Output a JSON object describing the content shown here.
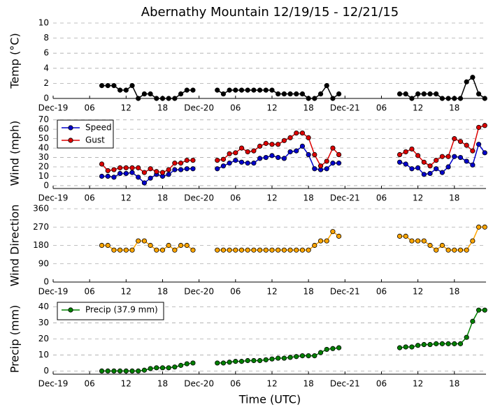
{
  "chart_data": [
    {
      "type": "line",
      "title": "Abernathy Mountain 12/19/15 - 12/21/15",
      "ylabel": "Temp (°C)",
      "x": [
        8,
        9,
        10,
        11,
        12,
        13,
        14,
        15,
        16,
        17,
        18,
        19,
        20,
        21,
        22,
        23,
        24,
        27,
        28,
        29,
        30,
        31,
        32,
        33,
        34,
        35,
        36,
        37,
        38,
        39,
        40,
        41,
        42,
        43,
        44,
        45,
        46,
        47,
        48,
        57,
        58,
        59,
        60,
        61,
        62,
        63,
        64,
        65,
        66,
        67,
        68,
        69,
        70,
        71
      ],
      "xlim": [
        0,
        71.2
      ],
      "xticks": [
        {
          "value": 0,
          "label": "Dec-19"
        },
        {
          "value": 6,
          "label": "06"
        },
        {
          "value": 12,
          "label": "12"
        },
        {
          "value": 18,
          "label": "18"
        },
        {
          "value": 24,
          "label": "Dec-20"
        },
        {
          "value": 30,
          "label": "06"
        },
        {
          "value": 36,
          "label": "12"
        },
        {
          "value": 42,
          "label": "18"
        },
        {
          "value": 48,
          "label": "Dec-21"
        },
        {
          "value": 54,
          "label": "06"
        },
        {
          "value": 60,
          "label": "12"
        },
        {
          "value": 66,
          "label": "18"
        }
      ],
      "ylim": [
        0,
        10
      ],
      "yticks": [
        0,
        2,
        4,
        6,
        8,
        10
      ],
      "grid": true,
      "series": [
        {
          "name": "Temp",
          "color": "#000000",
          "values": [
            1.7,
            1.7,
            1.7,
            1.1,
            1.1,
            1.7,
            0,
            0.6,
            0.6,
            0,
            0,
            0,
            0,
            0.6,
            1.1,
            1.1,
            null,
            1.1,
            0.6,
            1.1,
            1.1,
            1.1,
            1.1,
            1.1,
            1.1,
            1.1,
            1.1,
            0.6,
            0.6,
            0.6,
            0.6,
            0.6,
            0,
            0,
            0.6,
            1.7,
            0,
            0.6,
            null,
            0.6,
            0.6,
            0,
            0.6,
            0.6,
            0.6,
            0.6,
            0,
            0,
            0,
            0,
            2.2,
            2.8,
            0.6,
            0
          ]
        }
      ]
    },
    {
      "type": "line",
      "ylabel": "Wind (mph)",
      "legend": "upper left",
      "x": [
        8,
        9,
        10,
        11,
        12,
        13,
        14,
        15,
        16,
        17,
        18,
        19,
        20,
        21,
        22,
        23,
        24,
        27,
        28,
        29,
        30,
        31,
        32,
        33,
        34,
        35,
        36,
        37,
        38,
        39,
        40,
        41,
        42,
        43,
        44,
        45,
        46,
        47,
        48,
        57,
        58,
        59,
        60,
        61,
        62,
        63,
        64,
        65,
        66,
        67,
        68,
        69,
        70,
        71
      ],
      "xlim": [
        0,
        71.2
      ],
      "xticks": [
        {
          "value": 0,
          "label": "Dec-19"
        },
        {
          "value": 6,
          "label": "06"
        },
        {
          "value": 12,
          "label": "12"
        },
        {
          "value": 18,
          "label": "18"
        },
        {
          "value": 24,
          "label": "Dec-20"
        },
        {
          "value": 30,
          "label": "06"
        },
        {
          "value": 36,
          "label": "12"
        },
        {
          "value": 42,
          "label": "18"
        },
        {
          "value": 48,
          "label": "Dec-21"
        },
        {
          "value": 54,
          "label": "06"
        },
        {
          "value": 60,
          "label": "12"
        },
        {
          "value": 66,
          "label": "18"
        }
      ],
      "ylim": [
        -3,
        72
      ],
      "yticks": [
        0,
        10,
        20,
        30,
        40,
        50,
        60,
        70
      ],
      "grid": true,
      "series": [
        {
          "name": "Speed",
          "color": "#0000cc",
          "values": [
            10,
            10,
            9,
            13,
            13,
            14,
            9,
            3,
            8,
            12,
            10,
            12,
            17,
            17,
            18,
            18,
            null,
            18,
            21,
            24,
            27,
            25,
            24,
            24,
            29,
            30,
            32,
            30,
            29,
            36,
            37,
            42,
            33,
            18,
            17,
            18,
            24,
            24,
            null,
            25,
            23,
            18,
            19,
            12,
            13,
            18,
            14,
            20,
            31,
            30,
            26,
            22,
            44,
            35
          ]
        },
        {
          "name": "Gust",
          "color": "#dd0000",
          "values": [
            23,
            16,
            17,
            19,
            19,
            19,
            19,
            14,
            18,
            15,
            14,
            17,
            24,
            24,
            27,
            27,
            null,
            27,
            28,
            34,
            35,
            40,
            36,
            37,
            42,
            45,
            44,
            44,
            48,
            51,
            56,
            56,
            51,
            33,
            21,
            26,
            40,
            33,
            null,
            33,
            36,
            39,
            32,
            25,
            21,
            27,
            31,
            31,
            50,
            47,
            43,
            37,
            62,
            64
          ]
        }
      ]
    },
    {
      "type": "line",
      "ylabel": "Wind Direction",
      "x": [
        8,
        9,
        10,
        11,
        12,
        13,
        14,
        15,
        16,
        17,
        18,
        19,
        20,
        21,
        22,
        23,
        24,
        27,
        28,
        29,
        30,
        31,
        32,
        33,
        34,
        35,
        36,
        37,
        38,
        39,
        40,
        41,
        42,
        43,
        44,
        45,
        46,
        47,
        48,
        57,
        58,
        59,
        60,
        61,
        62,
        63,
        64,
        65,
        66,
        67,
        68,
        69,
        70,
        71
      ],
      "xlim": [
        0,
        71.2
      ],
      "xticks": [
        {
          "value": 0,
          "label": "Dec-19"
        },
        {
          "value": 6,
          "label": "06"
        },
        {
          "value": 12,
          "label": "12"
        },
        {
          "value": 18,
          "label": "18"
        },
        {
          "value": 24,
          "label": "Dec-20"
        },
        {
          "value": 30,
          "label": "06"
        },
        {
          "value": 36,
          "label": "12"
        },
        {
          "value": 42,
          "label": "18"
        },
        {
          "value": 48,
          "label": "Dec-21"
        },
        {
          "value": 54,
          "label": "06"
        },
        {
          "value": 60,
          "label": "12"
        },
        {
          "value": 66,
          "label": "18"
        }
      ],
      "ylim": [
        0,
        360
      ],
      "yticks": [
        0,
        90,
        180,
        270,
        360
      ],
      "grid": true,
      "series": [
        {
          "name": "Direction",
          "color": "#ffa500",
          "values": [
            180,
            180,
            157,
            157,
            157,
            157,
            202,
            202,
            180,
            157,
            157,
            180,
            157,
            180,
            180,
            157,
            null,
            157,
            157,
            157,
            157,
            157,
            157,
            157,
            157,
            157,
            157,
            157,
            157,
            157,
            157,
            157,
            157,
            180,
            202,
            202,
            248,
            225,
            null,
            225,
            225,
            202,
            202,
            202,
            180,
            157,
            180,
            157,
            157,
            157,
            157,
            202,
            270,
            270
          ]
        }
      ]
    },
    {
      "type": "line",
      "ylabel": "Precip (mm)",
      "xlabel": "Time (UTC)",
      "legend": "upper left",
      "x": [
        8,
        9,
        10,
        11,
        12,
        13,
        14,
        15,
        16,
        17,
        18,
        19,
        20,
        21,
        22,
        23,
        24,
        27,
        28,
        29,
        30,
        31,
        32,
        33,
        34,
        35,
        36,
        37,
        38,
        39,
        40,
        41,
        42,
        43,
        44,
        45,
        46,
        47,
        48,
        57,
        58,
        59,
        60,
        61,
        62,
        63,
        64,
        65,
        66,
        67,
        68,
        69,
        70,
        71
      ],
      "xlim": [
        0,
        71.2
      ],
      "xticks": [
        {
          "value": 0,
          "label": "Dec-19"
        },
        {
          "value": 6,
          "label": "06"
        },
        {
          "value": 12,
          "label": "12"
        },
        {
          "value": 18,
          "label": "18"
        },
        {
          "value": 24,
          "label": "Dec-20"
        },
        {
          "value": 30,
          "label": "06"
        },
        {
          "value": 36,
          "label": "12"
        },
        {
          "value": 42,
          "label": "18"
        },
        {
          "value": 48,
          "label": "Dec-21"
        },
        {
          "value": 54,
          "label": "06"
        },
        {
          "value": 60,
          "label": "12"
        },
        {
          "value": 66,
          "label": "18"
        }
      ],
      "ylim": [
        -2,
        42
      ],
      "yticks": [
        0,
        10,
        20,
        30,
        40
      ],
      "grid": true,
      "series": [
        {
          "name": "Precip (37.9 mm)",
          "color": "#008000",
          "values": [
            0,
            0,
            0,
            0,
            0,
            0,
            0,
            0.5,
            1.5,
            2,
            2,
            2,
            2.5,
            3.5,
            4.5,
            5,
            null,
            5,
            5,
            5.5,
            6,
            6,
            6.5,
            6.5,
            6.5,
            7,
            7.5,
            8,
            8,
            8.5,
            9,
            9.5,
            9.5,
            9.5,
            11.5,
            13.5,
            14,
            14.5,
            null,
            14.5,
            15,
            15,
            16,
            16.5,
            16.5,
            17,
            17,
            17,
            17,
            17,
            21,
            31,
            38,
            38
          ]
        }
      ]
    }
  ]
}
